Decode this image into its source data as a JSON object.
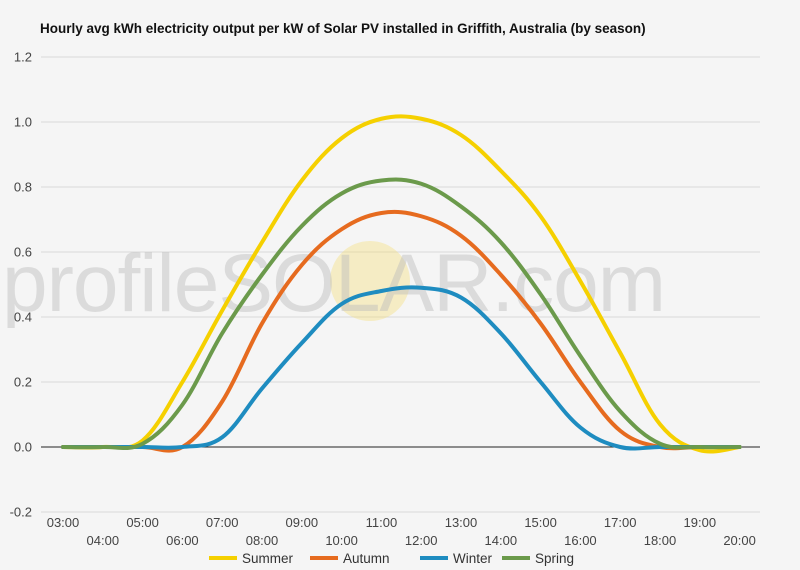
{
  "chart_data": {
    "type": "line",
    "title": "Hourly avg kWh electricity output per kW of Solar PV installed in Griffith, Australia (by season)",
    "watermark": "profileSOLAR.com",
    "xlabel": "",
    "ylabel": "",
    "x": [
      "03:00",
      "04:00",
      "05:00",
      "06:00",
      "07:00",
      "08:00",
      "09:00",
      "10:00",
      "11:00",
      "12:00",
      "13:00",
      "14:00",
      "15:00",
      "16:00",
      "17:00",
      "18:00",
      "19:00",
      "20:00"
    ],
    "x_ticks_upper": [
      "03:00",
      "05:00",
      "07:00",
      "09:00",
      "11:00",
      "13:00",
      "15:00",
      "17:00",
      "19:00"
    ],
    "x_ticks_lower": [
      "04:00",
      "06:00",
      "08:00",
      "10:00",
      "12:00",
      "14:00",
      "16:00",
      "18:00",
      "20:00"
    ],
    "y_ticks": [
      "-0.2",
      "0.0",
      "0.2",
      "0.4",
      "0.6",
      "0.8",
      "1.0",
      "1.2"
    ],
    "ylim": [
      -0.2,
      1.2
    ],
    "grid": true,
    "legend_position": "bottom",
    "series": [
      {
        "name": "Summer",
        "color": "#f5d000",
        "values": [
          0,
          0,
          0.02,
          0.2,
          0.42,
          0.63,
          0.82,
          0.95,
          1.01,
          1.01,
          0.96,
          0.85,
          0.71,
          0.51,
          0.29,
          0.07,
          -0.01,
          0
        ]
      },
      {
        "name": "Autumn",
        "color": "#e66b1f",
        "values": [
          0,
          0,
          0,
          0,
          0.14,
          0.38,
          0.56,
          0.67,
          0.72,
          0.71,
          0.65,
          0.53,
          0.38,
          0.2,
          0.05,
          0,
          0,
          0
        ]
      },
      {
        "name": "Winter",
        "color": "#1e8cc0",
        "values": [
          0,
          0,
          0,
          0,
          0.03,
          0.18,
          0.32,
          0.44,
          0.48,
          0.49,
          0.46,
          0.35,
          0.2,
          0.06,
          0,
          0,
          0,
          0
        ]
      },
      {
        "name": "Spring",
        "color": "#6b9a4b",
        "values": [
          0,
          0,
          0.01,
          0.13,
          0.35,
          0.53,
          0.68,
          0.78,
          0.82,
          0.81,
          0.74,
          0.63,
          0.47,
          0.28,
          0.11,
          0.01,
          0,
          0
        ]
      }
    ]
  }
}
